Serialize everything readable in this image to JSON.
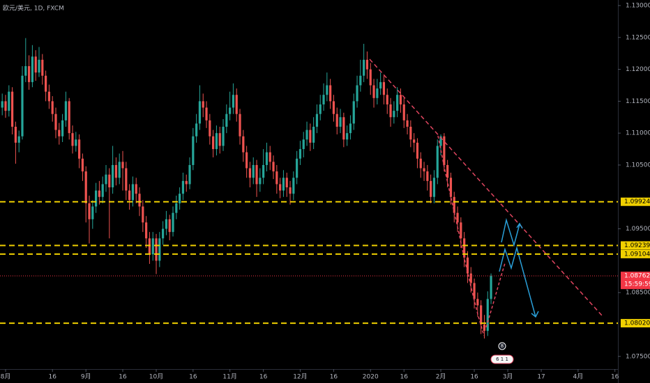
{
  "chart_data": {
    "type": "candlestick",
    "title": "欧元/美元, 1D, FXCM",
    "up_color": "#26a69a",
    "down_color": "#ef5350",
    "ylim": [
      1.07301,
      1.13087
    ],
    "xlim": [
      -0.667,
      183.9
    ],
    "yticks": [
      {
        "value": 1.13,
        "label": "1.13000"
      },
      {
        "value": 1.125,
        "label": "1.12500"
      },
      {
        "value": 1.12,
        "label": "1.12000"
      },
      {
        "value": 1.115,
        "label": "1.11500"
      },
      {
        "value": 1.11,
        "label": "1.11000"
      },
      {
        "value": 1.105,
        "label": "1.10500"
      },
      {
        "value": 1.095,
        "label": "1.09500"
      },
      {
        "value": 1.085,
        "label": "1.08500"
      },
      {
        "value": 1.075,
        "label": "1.07500"
      }
    ],
    "xticks": [
      {
        "value": 1,
        "label": "8月"
      },
      {
        "value": 15,
        "label": "16"
      },
      {
        "value": 25,
        "label": "9月"
      },
      {
        "value": 36,
        "label": "16"
      },
      {
        "value": 46,
        "label": "10月"
      },
      {
        "value": 57,
        "label": "16"
      },
      {
        "value": 68,
        "label": "11月"
      },
      {
        "value": 78,
        "label": "16"
      },
      {
        "value": 89,
        "label": "12月"
      },
      {
        "value": 99,
        "label": "16"
      },
      {
        "value": 110,
        "label": "2020"
      },
      {
        "value": 120,
        "label": "16"
      },
      {
        "value": 131,
        "label": "2月"
      },
      {
        "value": 141,
        "label": "16"
      },
      {
        "value": 151,
        "label": "3月"
      },
      {
        "value": 161,
        "label": "17"
      },
      {
        "value": 172,
        "label": "4月"
      },
      {
        "value": 183,
        "label": "16"
      }
    ],
    "levels_color": "#f0d000",
    "levels": [
      {
        "value": 1.09924,
        "label": "1.09924"
      },
      {
        "value": 1.09239,
        "label": "1.09239"
      },
      {
        "value": 1.09104,
        "label": "1.09104"
      },
      {
        "value": 1.0802,
        "label": "1.08020"
      }
    ],
    "last_price": {
      "value": 1.08762,
      "label": "1.08762",
      "countdown": "15:59:59",
      "color": "#f23645"
    },
    "badges": [
      "8",
      "6 1 1"
    ],
    "ohlc": [
      [
        1.114,
        1.1162,
        1.1128,
        1.115
      ],
      [
        1.115,
        1.116,
        1.1124,
        1.1135
      ],
      [
        1.1135,
        1.1175,
        1.1126,
        1.1165
      ],
      [
        1.1165,
        1.1172,
        1.1098,
        1.111
      ],
      [
        1.111,
        1.1118,
        1.1052,
        1.1085
      ],
      [
        1.1085,
        1.1104,
        1.107,
        1.1095
      ],
      [
        1.1095,
        1.1205,
        1.109,
        1.119
      ],
      [
        1.119,
        1.1249,
        1.118,
        1.1205
      ],
      [
        1.1205,
        1.1222,
        1.1168,
        1.118
      ],
      [
        1.118,
        1.1238,
        1.1172,
        1.122
      ],
      [
        1.122,
        1.123,
        1.1182,
        1.1195
      ],
      [
        1.1195,
        1.1235,
        1.1188,
        1.1215
      ],
      [
        1.1215,
        1.1224,
        1.1176,
        1.119
      ],
      [
        1.119,
        1.1198,
        1.115,
        1.1165
      ],
      [
        1.1165,
        1.1176,
        1.1138,
        1.115
      ],
      [
        1.115,
        1.1158,
        1.1118,
        1.113
      ],
      [
        1.113,
        1.114,
        1.1092,
        1.1105
      ],
      [
        1.1105,
        1.1116,
        1.1082,
        1.1095
      ],
      [
        1.1095,
        1.113,
        1.1086,
        1.112
      ],
      [
        1.112,
        1.1165,
        1.111,
        1.115
      ],
      [
        1.115,
        1.1155,
        1.109,
        1.11
      ],
      [
        1.11,
        1.1112,
        1.1068,
        1.108
      ],
      [
        1.108,
        1.1102,
        1.1071,
        1.109
      ],
      [
        1.109,
        1.1098,
        1.1045,
        1.106
      ],
      [
        1.106,
        1.1068,
        1.1025,
        1.104
      ],
      [
        1.104,
        1.1048,
        1.096,
        1.099
      ],
      [
        1.099,
        1.1002,
        1.0927,
        1.0965
      ],
      [
        1.0965,
        1.0995,
        1.095,
        1.0985
      ],
      [
        1.0985,
        1.1022,
        1.0975,
        1.101
      ],
      [
        1.101,
        1.1025,
        1.0988,
        1.1
      ],
      [
        1.1,
        1.1032,
        1.099,
        1.102
      ],
      [
        1.102,
        1.105,
        1.1008,
        1.1035
      ],
      [
        1.1035,
        1.1045,
        1.0935,
        1.1015
      ],
      [
        1.1015,
        1.108,
        1.1005,
        1.105
      ],
      [
        1.105,
        1.1062,
        1.1018,
        1.103
      ],
      [
        1.103,
        1.1068,
        1.102,
        1.1055
      ],
      [
        1.1055,
        1.1072,
        1.101,
        1.1045
      ],
      [
        1.1045,
        1.1055,
        1.0995,
        1.101
      ],
      [
        1.101,
        1.102,
        1.098,
        1.0995
      ],
      [
        1.0995,
        1.1032,
        1.0985,
        1.102
      ],
      [
        1.102,
        1.103,
        1.099,
        1.1005
      ],
      [
        1.1005,
        1.1015,
        1.097,
        1.0985
      ],
      [
        1.0985,
        1.0995,
        1.0945,
        1.096
      ],
      [
        1.096,
        1.097,
        1.092,
        1.0935
      ],
      [
        1.0935,
        1.0945,
        1.0895,
        1.091
      ],
      [
        1.091,
        1.0945,
        1.09,
        1.0935
      ],
      [
        1.0935,
        1.0942,
        1.0879,
        1.09
      ],
      [
        1.09,
        1.0945,
        1.089,
        1.0935
      ],
      [
        1.0935,
        1.0962,
        1.0925,
        1.095
      ],
      [
        1.095,
        1.0978,
        1.094,
        1.0965
      ],
      [
        1.0965,
        1.0972,
        1.0932,
        1.0945
      ],
      [
        1.0945,
        1.0985,
        1.0938,
        1.0975
      ],
      [
        1.0975,
        1.1002,
        1.0965,
        1.099
      ],
      [
        1.099,
        1.1015,
        1.098,
        1.1005
      ],
      [
        1.1005,
        1.1038,
        1.0995,
        1.1025
      ],
      [
        1.1025,
        1.1035,
        1.1008,
        1.102
      ],
      [
        1.102,
        1.1062,
        1.1012,
        1.105
      ],
      [
        1.105,
        1.1108,
        1.1042,
        1.1095
      ],
      [
        1.1095,
        1.113,
        1.1085,
        1.1115
      ],
      [
        1.1115,
        1.1175,
        1.1105,
        1.115
      ],
      [
        1.115,
        1.1162,
        1.1125,
        1.114
      ],
      [
        1.114,
        1.115,
        1.1108,
        1.112
      ],
      [
        1.112,
        1.113,
        1.1082,
        1.1095
      ],
      [
        1.1095,
        1.1105,
        1.1062,
        1.1075
      ],
      [
        1.1075,
        1.1112,
        1.1065,
        1.11
      ],
      [
        1.11,
        1.111,
        1.1068,
        1.108
      ],
      [
        1.108,
        1.1122,
        1.1072,
        1.111
      ],
      [
        1.111,
        1.1145,
        1.11,
        1.113
      ],
      [
        1.113,
        1.1165,
        1.112,
        1.114
      ],
      [
        1.114,
        1.1178,
        1.113,
        1.116
      ],
      [
        1.116,
        1.117,
        1.1118,
        1.113
      ],
      [
        1.113,
        1.1138,
        1.1082,
        1.1095
      ],
      [
        1.1095,
        1.1105,
        1.1055,
        1.107
      ],
      [
        1.107,
        1.108,
        1.103,
        1.1045
      ],
      [
        1.1045,
        1.1055,
        1.1015,
        1.103
      ],
      [
        1.103,
        1.1062,
        1.102,
        1.105
      ],
      [
        1.105,
        1.1058,
        1.1,
        1.102
      ],
      [
        1.102,
        1.1045,
        1.1008,
        1.103
      ],
      [
        1.103,
        1.1075,
        1.102,
        1.105
      ],
      [
        1.105,
        1.1085,
        1.104,
        1.107
      ],
      [
        1.107,
        1.108,
        1.1042,
        1.1055
      ],
      [
        1.1055,
        1.1065,
        1.1028,
        1.104
      ],
      [
        1.104,
        1.105,
        1.1005,
        1.102
      ],
      [
        1.102,
        1.103,
        1.0998,
        1.101
      ],
      [
        1.101,
        1.1042,
        1.1,
        1.103
      ],
      [
        1.103,
        1.1038,
        1.1,
        1.1015
      ],
      [
        1.1015,
        1.1025,
        1.0988,
        1.1005
      ],
      [
        1.1005,
        1.104,
        1.0995,
        1.103
      ],
      [
        1.103,
        1.1072,
        1.102,
        1.106
      ],
      [
        1.106,
        1.1088,
        1.105,
        1.1075
      ],
      [
        1.1075,
        1.1102,
        1.1062,
        1.109
      ],
      [
        1.109,
        1.1118,
        1.108,
        1.1105
      ],
      [
        1.1105,
        1.1115,
        1.1072,
        1.1085
      ],
      [
        1.1085,
        1.1125,
        1.1075,
        1.111
      ],
      [
        1.111,
        1.1145,
        1.11,
        1.113
      ],
      [
        1.113,
        1.116,
        1.112,
        1.1145
      ],
      [
        1.1145,
        1.1178,
        1.1135,
        1.116
      ],
      [
        1.116,
        1.1195,
        1.115,
        1.1175
      ],
      [
        1.1175,
        1.1185,
        1.1138,
        1.115
      ],
      [
        1.115,
        1.116,
        1.1118,
        1.113
      ],
      [
        1.113,
        1.114,
        1.1098,
        1.111
      ],
      [
        1.111,
        1.1138,
        1.11,
        1.1125
      ],
      [
        1.1125,
        1.1132,
        1.1078,
        1.109
      ],
      [
        1.109,
        1.1112,
        1.108,
        1.11
      ],
      [
        1.11,
        1.1128,
        1.109,
        1.1115
      ],
      [
        1.1115,
        1.1162,
        1.1105,
        1.115
      ],
      [
        1.115,
        1.119,
        1.114,
        1.1175
      ],
      [
        1.1175,
        1.1215,
        1.1165,
        1.119
      ],
      [
        1.119,
        1.124,
        1.118,
        1.1215
      ],
      [
        1.1215,
        1.1228,
        1.1185,
        1.12
      ],
      [
        1.12,
        1.121,
        1.116,
        1.1175
      ],
      [
        1.1175,
        1.1185,
        1.114,
        1.1155
      ],
      [
        1.1155,
        1.1185,
        1.1145,
        1.117
      ],
      [
        1.117,
        1.1195,
        1.116,
        1.118
      ],
      [
        1.118,
        1.119,
        1.1145,
        1.116
      ],
      [
        1.116,
        1.117,
        1.113,
        1.1145
      ],
      [
        1.1145,
        1.1155,
        1.111,
        1.1125
      ],
      [
        1.1125,
        1.115,
        1.1115,
        1.1135
      ],
      [
        1.1135,
        1.1172,
        1.1125,
        1.116
      ],
      [
        1.116,
        1.117,
        1.1132,
        1.1145
      ],
      [
        1.1145,
        1.1155,
        1.1108,
        1.112
      ],
      [
        1.112,
        1.113,
        1.1098,
        1.111
      ],
      [
        1.111,
        1.112,
        1.1078,
        1.109
      ],
      [
        1.109,
        1.11,
        1.107,
        1.1085
      ],
      [
        1.1085,
        1.1092,
        1.1045,
        1.106
      ],
      [
        1.106,
        1.107,
        1.103,
        1.1045
      ],
      [
        1.1045,
        1.1055,
        1.1025,
        1.104
      ],
      [
        1.104,
        1.105,
        1.101,
        1.1025
      ],
      [
        1.1025,
        1.1035,
        1.099,
        1.1
      ],
      [
        1.1,
        1.1042,
        1.099,
        1.103
      ],
      [
        1.103,
        1.109,
        1.102,
        1.108
      ],
      [
        1.108,
        1.1098,
        1.1065,
        1.1095
      ],
      [
        1.1095,
        1.11,
        1.104,
        1.105
      ],
      [
        1.105,
        1.1058,
        1.1015,
        1.103
      ],
      [
        1.103,
        1.1038,
        1.0988,
        1.1
      ],
      [
        1.1,
        1.1008,
        1.096,
        1.0975
      ],
      [
        1.0975,
        1.0985,
        1.0945,
        1.096
      ],
      [
        1.096,
        1.0968,
        1.092,
        1.0935
      ],
      [
        1.0935,
        1.0945,
        1.089,
        1.0905
      ],
      [
        1.0905,
        1.0915,
        1.0865,
        1.088
      ],
      [
        1.088,
        1.089,
        1.085,
        1.0865
      ],
      [
        1.0865,
        1.0872,
        1.0825,
        1.084
      ],
      [
        1.084,
        1.085,
        1.0812,
        1.083
      ],
      [
        1.083,
        1.0838,
        1.0785,
        1.08
      ],
      [
        1.08,
        1.0815,
        1.0778,
        1.079
      ],
      [
        1.079,
        1.0852,
        1.0782,
        1.084
      ],
      [
        1.084,
        1.088,
        1.0832,
        1.0876
      ]
    ]
  }
}
